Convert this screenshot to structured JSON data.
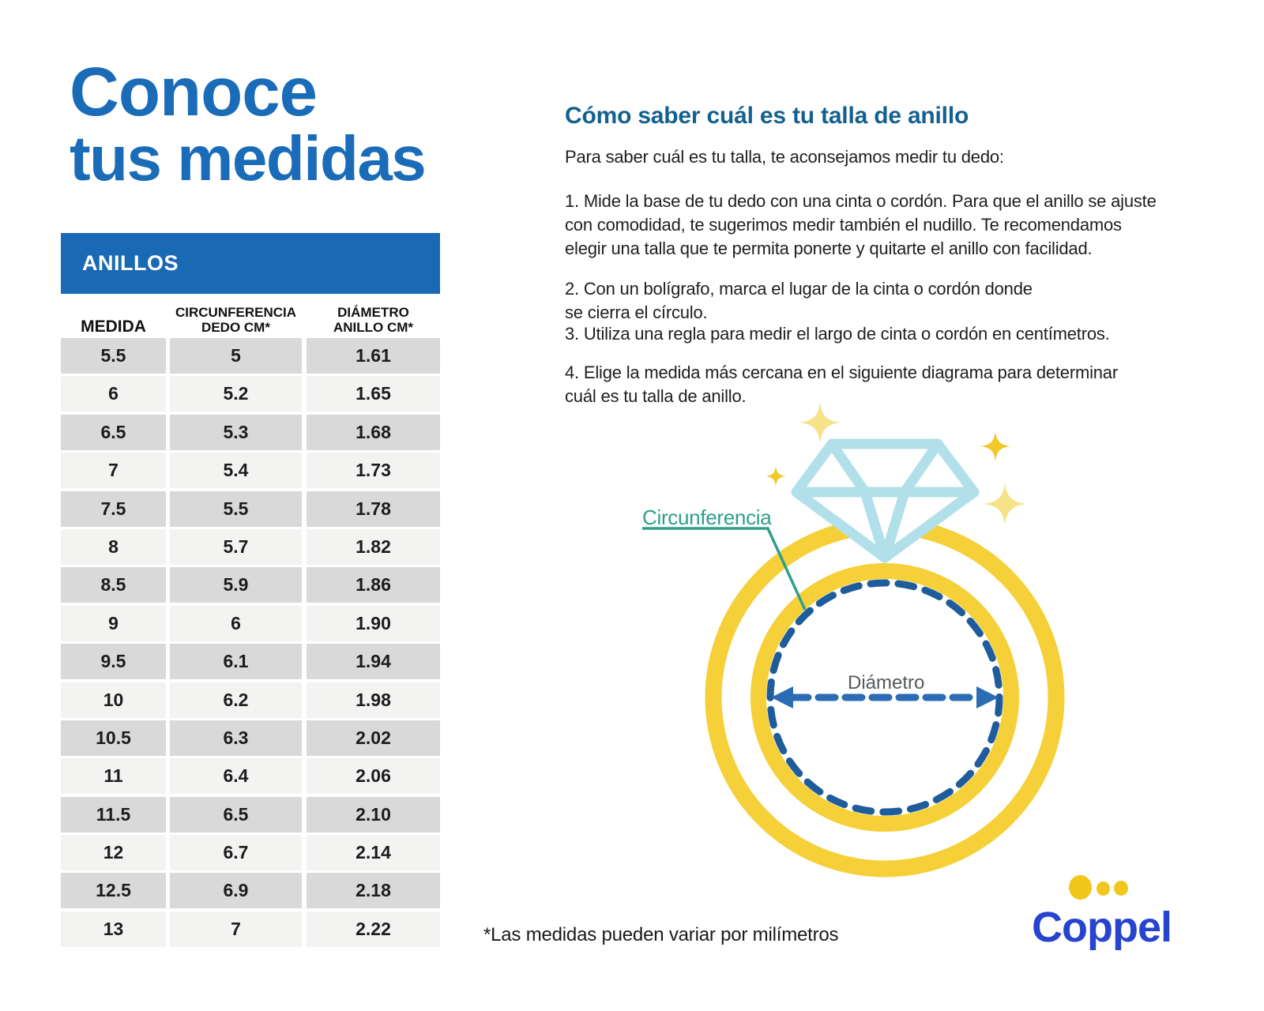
{
  "title": {
    "line1": "Conoce",
    "line2": "tus medidas"
  },
  "table": {
    "band_label": "ANILLOS",
    "columns": [
      "MEDIDA",
      "CIRCUNFERENCIA\nDEDO CM*",
      "DIÁMETRO\nANILLO CM*"
    ],
    "rows": [
      [
        "5.5",
        "5",
        "1.61"
      ],
      [
        "6",
        "5.2",
        "1.65"
      ],
      [
        "6.5",
        "5.3",
        "1.68"
      ],
      [
        "7",
        "5.4",
        "1.73"
      ],
      [
        "7.5",
        "5.5",
        "1.78"
      ],
      [
        "8",
        "5.7",
        "1.82"
      ],
      [
        "8.5",
        "5.9",
        "1.86"
      ],
      [
        "9",
        "6",
        "1.90"
      ],
      [
        "9.5",
        "6.1",
        "1.94"
      ],
      [
        "10",
        "6.2",
        "1.98"
      ],
      [
        "10.5",
        "6.3",
        "2.02"
      ],
      [
        "11",
        "6.4",
        "2.06"
      ],
      [
        "11.5",
        "6.5",
        "2.10"
      ],
      [
        "12",
        "6.7",
        "2.14"
      ],
      [
        "12.5",
        "6.9",
        "2.18"
      ],
      [
        "13",
        "7",
        "2.22"
      ]
    ]
  },
  "instructions": {
    "heading": "Cómo saber cuál es tu talla de anillo",
    "intro": "Para saber cuál es tu talla, te aconsejamos medir tu dedo:",
    "steps": [
      "1. Mide la base de tu dedo con una cinta o cordón. Para que el anillo se ajuste\ncon comodidad, te sugerimos medir también el nudillo. Te recomendamos\nelegir una talla que te permita ponerte y quitarte el anillo con facilidad.",
      "2. Con un bolígrafo, marca el lugar de la cinta o cordón donde\nse cierra el círculo.",
      "3. Utiliza una regla para medir el largo de cinta o cordón en centímetros.",
      "4. Elige la medida más cercana en el siguiente diagrama para determinar\ncuál es tu talla de anillo."
    ]
  },
  "diagram": {
    "circumference_label": "Circunferencia",
    "diameter_label": "Diámetro"
  },
  "footnote": "*Las medidas pueden variar por milímetros",
  "logo": {
    "text": "Coppel"
  },
  "colors": {
    "title-blue": "#1a6cb8",
    "heading-blue": "#14608f",
    "band-blue": "#1a69b4",
    "row-dark": "#d9d9d9",
    "row-light": "#f3f3f2",
    "ring-yellow": "#f5d038",
    "diamond-blue": "#b2e0ea",
    "dash-blue": "#1f5c9c",
    "arrow-blue": "#2b6cb4",
    "teal": "#2f9e8a",
    "gray-label": "#55595c",
    "sparkle-pale": "#f6e287",
    "sparkle-gold": "#f1c829",
    "logo-blue": "#2744cf",
    "logo-yellow": "#f2c71d"
  }
}
